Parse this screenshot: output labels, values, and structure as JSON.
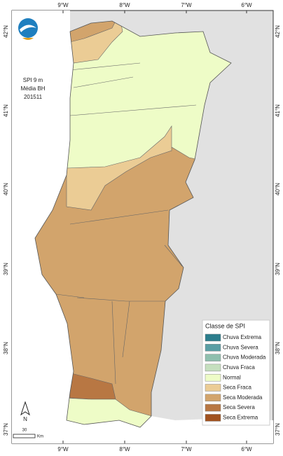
{
  "map": {
    "title_lines": [
      "SPI 9 m",
      "Média BH",
      "201511"
    ],
    "lon_labels": [
      "9°W",
      "8°W",
      "7°W",
      "6°W"
    ],
    "lat_labels": [
      "42°N",
      "41°N",
      "40°N",
      "39°N",
      "38°N",
      "37°N"
    ],
    "legend": {
      "title": "Classe de SPI",
      "items": [
        {
          "label": "Chuva Extrema",
          "color": "#2b7d8c"
        },
        {
          "label": "Chuva Severa",
          "color": "#5a9ea4"
        },
        {
          "label": "Chuva Moderada",
          "color": "#8fbfae"
        },
        {
          "label": "Chuva Fraca",
          "color": "#c5dfbe"
        },
        {
          "label": "Normal",
          "color": "#eefcc7"
        },
        {
          "label": "Seca Fraca",
          "color": "#ebcc95"
        },
        {
          "label": "Seca Moderada",
          "color": "#d2a46c"
        },
        {
          "label": "Seca Severa",
          "color": "#b87743"
        },
        {
          "label": "Seca Extrema",
          "color": "#a1521f"
        }
      ]
    },
    "scale": {
      "label": "30",
      "unit": "Km"
    },
    "north": "N"
  }
}
